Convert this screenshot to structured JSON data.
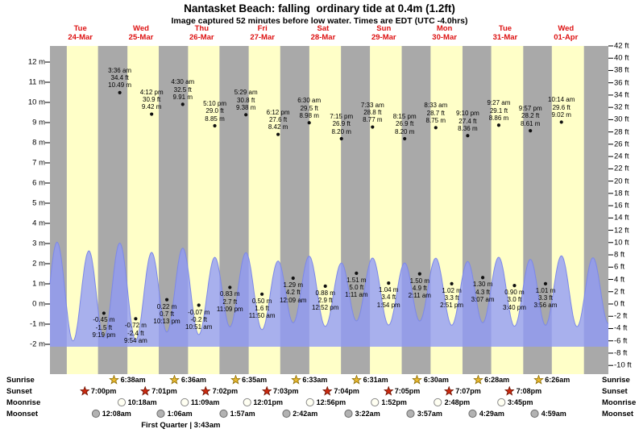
{
  "title": "Nantasket Beach: falling  ordinary tide at 0.4m (1.2ft)",
  "subtitle": "Image captured 52 minutes before low water. Times are EDT (UTC -4.0hrs)",
  "colors": {
    "day_band": "#ffffc8",
    "night_band": "#a9a9a9",
    "tide_fill": "#8f9af7",
    "tide_edge": "#7c88e8",
    "date_red": "#dd1111",
    "dot": "#111111",
    "tick": "#000000",
    "sunrise_star": "#e8b830",
    "sunrise_star_edge": "#8a6a00",
    "sunset_star": "#cc2a10",
    "sunset_star_edge": "#6e1404",
    "moonrise_fill": "#fffff2",
    "moonrise_edge": "#8a8a8a",
    "moonset_fill": "#b2b2b2",
    "moonset_edge": "#6e6e6e"
  },
  "days": [
    {
      "weekday": "Tue",
      "date": "24-Mar"
    },
    {
      "weekday": "Wed",
      "date": "25-Mar"
    },
    {
      "weekday": "Thu",
      "date": "26-Mar"
    },
    {
      "weekday": "Fri",
      "date": "27-Mar"
    },
    {
      "weekday": "Sat",
      "date": "28-Mar"
    },
    {
      "weekday": "Sun",
      "date": "29-Mar"
    },
    {
      "weekday": "Mon",
      "date": "30-Mar"
    },
    {
      "weekday": "Tue",
      "date": "31-Mar"
    },
    {
      "weekday": "Wed",
      "date": "01-Apr"
    }
  ],
  "chart_data": {
    "type": "area",
    "title": "Nantasket Beach tide heights",
    "x_axis": "Days Tue 24-Mar through Wed 01-Apr, time of day",
    "ylabel_left": "meters",
    "ylabel_right": "feet",
    "ylim_left_m": [
      -2,
      12
    ],
    "ylim_right_ft": [
      -10,
      42
    ],
    "y_axis_left_labels": [
      "12 m",
      "11 m",
      "10 m",
      "9 m",
      "8 m",
      "7 m",
      "6 m",
      "5 m",
      "4 m",
      "3 m",
      "2 m",
      "1 m",
      "0 m",
      "-1 m",
      "-2 m"
    ],
    "y_axis_right_labels": [
      "42 ft",
      "40 ft",
      "38 ft",
      "36 ft",
      "34 ft",
      "32 ft",
      "30 ft",
      "28 ft",
      "26 ft",
      "24 ft",
      "22 ft",
      "20 ft",
      "18 ft",
      "16 ft",
      "14 ft",
      "12 ft",
      "10 ft",
      "8 ft",
      "6 ft",
      "4 ft",
      "2 ft",
      "0 ft",
      "-2 ft",
      "-4 ft",
      "-6 ft",
      "-8 ft",
      "-10 ft"
    ],
    "high_tides": [
      {
        "day": 1,
        "hour": 3.6,
        "ft": 34.4,
        "m": 10.49,
        "lines": [
          "3:36 am",
          "34.4 ft",
          "10.49 m"
        ]
      },
      {
        "day": 1,
        "hour": 16.2,
        "ft": 30.9,
        "m": 9.42,
        "lines": [
          "4:12 pm",
          "30.9 ft",
          "9.42 m"
        ]
      },
      {
        "day": 2,
        "hour": 4.5,
        "ft": 32.5,
        "m": 9.91,
        "lines": [
          "4:30 am",
          "32.5 ft",
          "9.91 m"
        ]
      },
      {
        "day": 2,
        "hour": 17.167,
        "ft": 29.0,
        "m": 8.85,
        "lines": [
          "5:10 pm",
          "29.0 ft",
          "8.85 m"
        ]
      },
      {
        "day": 3,
        "hour": 5.483,
        "ft": 30.8,
        "m": 9.38,
        "lines": [
          "5:29 am",
          "30.8 ft",
          "9.38 m"
        ]
      },
      {
        "day": 3,
        "hour": 18.2,
        "ft": 27.6,
        "m": 8.42,
        "lines": [
          "6:12 pm",
          "27.6 ft",
          "8.42 m"
        ]
      },
      {
        "day": 4,
        "hour": 6.5,
        "ft": 29.5,
        "m": 8.98,
        "lines": [
          "6:30 am",
          "29.5 ft",
          "8.98 m"
        ]
      },
      {
        "day": 4,
        "hour": 19.25,
        "ft": 26.9,
        "m": 8.2,
        "lines": [
          "7:15 pm",
          "26.9 ft",
          "8.20 m"
        ]
      },
      {
        "day": 5,
        "hour": 7.55,
        "ft": 28.8,
        "m": 8.77,
        "lines": [
          "7:33 am",
          "28.8 ft",
          "8.77 m"
        ]
      },
      {
        "day": 5,
        "hour": 20.25,
        "ft": 26.9,
        "m": 8.2,
        "lines": [
          "8:15 pm",
          "26.9 ft",
          "8.20 m"
        ]
      },
      {
        "day": 6,
        "hour": 8.55,
        "ft": 28.7,
        "m": 8.75,
        "lines": [
          "8:33 am",
          "28.7 ft",
          "8.75 m"
        ]
      },
      {
        "day": 6,
        "hour": 21.167,
        "ft": 27.4,
        "m": 8.36,
        "lines": [
          "9:10 pm",
          "27.4 ft",
          "8.36 m"
        ]
      },
      {
        "day": 7,
        "hour": 9.45,
        "ft": 29.1,
        "m": 8.86,
        "lines": [
          "9:27 am",
          "29.1 ft",
          "8.86 m"
        ]
      },
      {
        "day": 7,
        "hour": 21.95,
        "ft": 28.2,
        "m": 8.61,
        "lines": [
          "9:57 pm",
          "28.2 ft",
          "8.61 m"
        ]
      },
      {
        "day": 8,
        "hour": 10.233,
        "ft": 29.6,
        "m": 9.02,
        "lines": [
          "10:14 am",
          "29.6 ft",
          "9.02 m"
        ]
      }
    ],
    "low_tides": [
      {
        "day": 0,
        "hour": 21.317,
        "ft": -1.5,
        "m": -0.45,
        "lines": [
          "-0.45 m",
          "-1.5 ft",
          "9:19 pm"
        ]
      },
      {
        "day": 1,
        "hour": 9.9,
        "ft": -2.4,
        "m": -0.72,
        "lines": [
          "-0.72 m",
          "-2.4 ft",
          "9:54 am"
        ]
      },
      {
        "day": 1,
        "hour": 22.217,
        "ft": 0.7,
        "m": 0.22,
        "lines": [
          "0.22 m",
          "0.7 ft",
          "10:13 pm"
        ]
      },
      {
        "day": 2,
        "hour": 10.85,
        "ft": -0.2,
        "m": -0.07,
        "lines": [
          "-0.07 m",
          "-0.2 ft",
          "10:51 am"
        ]
      },
      {
        "day": 2,
        "hour": 23.15,
        "ft": 2.7,
        "m": 0.83,
        "lines": [
          "0.83 m",
          "2.7 ft",
          "11:09 pm"
        ]
      },
      {
        "day": 3,
        "hour": 11.833,
        "ft": 1.6,
        "m": 0.5,
        "lines": [
          "0.50 m",
          "1.6 ft",
          "11:50 am"
        ]
      },
      {
        "day": 4,
        "hour": 0.15,
        "ft": 4.2,
        "m": 1.29,
        "lines": [
          "1.29 m",
          "4.2 ft",
          "12:09 am"
        ]
      },
      {
        "day": 4,
        "hour": 12.867,
        "ft": 2.9,
        "m": 0.88,
        "lines": [
          "0.88 m",
          "2.9 ft",
          "12:52 pm"
        ]
      },
      {
        "day": 5,
        "hour": 1.183,
        "ft": 5.0,
        "m": 1.51,
        "lines": [
          "1.51 m",
          "5.0 ft",
          "1:11 am"
        ]
      },
      {
        "day": 5,
        "hour": 13.9,
        "ft": 3.4,
        "m": 1.04,
        "lines": [
          "1.04 m",
          "3.4 ft",
          "1:54 pm"
        ]
      },
      {
        "day": 6,
        "hour": 2.183,
        "ft": 4.9,
        "m": 1.5,
        "lines": [
          "1.50 m",
          "4.9 ft",
          "2:11 am"
        ]
      },
      {
        "day": 6,
        "hour": 14.85,
        "ft": 3.3,
        "m": 1.02,
        "lines": [
          "1.02 m",
          "3.3 ft",
          "2:51 pm"
        ]
      },
      {
        "day": 7,
        "hour": 3.117,
        "ft": 4.3,
        "m": 1.3,
        "lines": [
          "1.30 m",
          "4.3 ft",
          "3:07 am"
        ]
      },
      {
        "day": 7,
        "hour": 15.667,
        "ft": 3.0,
        "m": 0.9,
        "lines": [
          "0.90 m",
          "3.0 ft",
          "3:40 pm"
        ]
      },
      {
        "day": 8,
        "hour": 3.933,
        "ft": 3.3,
        "m": 1.01,
        "lines": [
          "1.01 m",
          "3.3 ft",
          "3:56 am"
        ]
      }
    ],
    "curve_edge_padding": [
      {
        "day": -1,
        "hour": 20.5,
        "m": -1.0
      },
      {
        "day": 0,
        "hour": 2.8,
        "m": 10.6
      },
      {
        "day": 0,
        "hour": 9.1,
        "m": -0.8
      },
      {
        "day": 0,
        "hour": 15.4,
        "m": 9.6
      },
      {
        "day": 8,
        "hour": 16.4,
        "m": 0.85
      },
      {
        "day": 8,
        "hour": 22.7,
        "m": 8.8
      },
      {
        "day": 9,
        "hour": 4.8,
        "m": 1.2
      }
    ]
  },
  "astro": {
    "rows": [
      {
        "id": "sunrise",
        "label": "Sunrise",
        "icon": "sunrise-star-icon",
        "events": [
          {
            "day": 1,
            "hour": 6.633,
            "time": "6:38am"
          },
          {
            "day": 2,
            "hour": 6.6,
            "time": "6:36am"
          },
          {
            "day": 3,
            "hour": 6.583,
            "time": "6:35am"
          },
          {
            "day": 4,
            "hour": 6.55,
            "time": "6:33am"
          },
          {
            "day": 5,
            "hour": 6.517,
            "time": "6:31am"
          },
          {
            "day": 6,
            "hour": 6.5,
            "time": "6:30am"
          },
          {
            "day": 7,
            "hour": 6.467,
            "time": "6:28am"
          },
          {
            "day": 8,
            "hour": 6.433,
            "time": "6:26am"
          }
        ]
      },
      {
        "id": "sunset",
        "label": "Sunset",
        "icon": "sunset-star-icon",
        "events": [
          {
            "day": 0,
            "hour": 19.0,
            "time": "7:00pm"
          },
          {
            "day": 1,
            "hour": 19.017,
            "time": "7:01pm"
          },
          {
            "day": 2,
            "hour": 19.033,
            "time": "7:02pm"
          },
          {
            "day": 3,
            "hour": 19.05,
            "time": "7:03pm"
          },
          {
            "day": 4,
            "hour": 19.067,
            "time": "7:04pm"
          },
          {
            "day": 5,
            "hour": 19.083,
            "time": "7:05pm"
          },
          {
            "day": 6,
            "hour": 19.117,
            "time": "7:07pm"
          },
          {
            "day": 7,
            "hour": 19.133,
            "time": "7:08pm"
          }
        ]
      },
      {
        "id": "moonrise",
        "label": "Moonrise",
        "icon": "moonrise-icon",
        "events": [
          {
            "day": 1,
            "hour": 10.3,
            "time": "10:18am"
          },
          {
            "day": 2,
            "hour": 11.15,
            "time": "11:09am"
          },
          {
            "day": 3,
            "hour": 12.017,
            "time": "12:01pm"
          },
          {
            "day": 4,
            "hour": 12.933,
            "time": "12:56pm"
          },
          {
            "day": 5,
            "hour": 13.867,
            "time": "1:52pm"
          },
          {
            "day": 6,
            "hour": 14.8,
            "time": "2:48pm"
          },
          {
            "day": 7,
            "hour": 15.75,
            "time": "3:45pm"
          }
        ]
      },
      {
        "id": "moonset",
        "label": "Moonset",
        "icon": "moonset-icon",
        "events": [
          {
            "day": 1,
            "hour": 0.133,
            "time": "12:08am"
          },
          {
            "day": 2,
            "hour": 1.1,
            "time": "1:06am"
          },
          {
            "day": 3,
            "hour": 1.95,
            "time": "1:57am"
          },
          {
            "day": 4,
            "hour": 2.7,
            "time": "2:42am"
          },
          {
            "day": 5,
            "hour": 3.367,
            "time": "3:22am"
          },
          {
            "day": 6,
            "hour": 3.95,
            "time": "3:57am"
          },
          {
            "day": 7,
            "hour": 4.483,
            "time": "4:29am"
          },
          {
            "day": 8,
            "hour": 4.983,
            "time": "4:59am"
          }
        ]
      }
    ],
    "moon_phase": {
      "label": "First Quarter | 3:43am",
      "day": 2,
      "hour": 3.717
    }
  }
}
